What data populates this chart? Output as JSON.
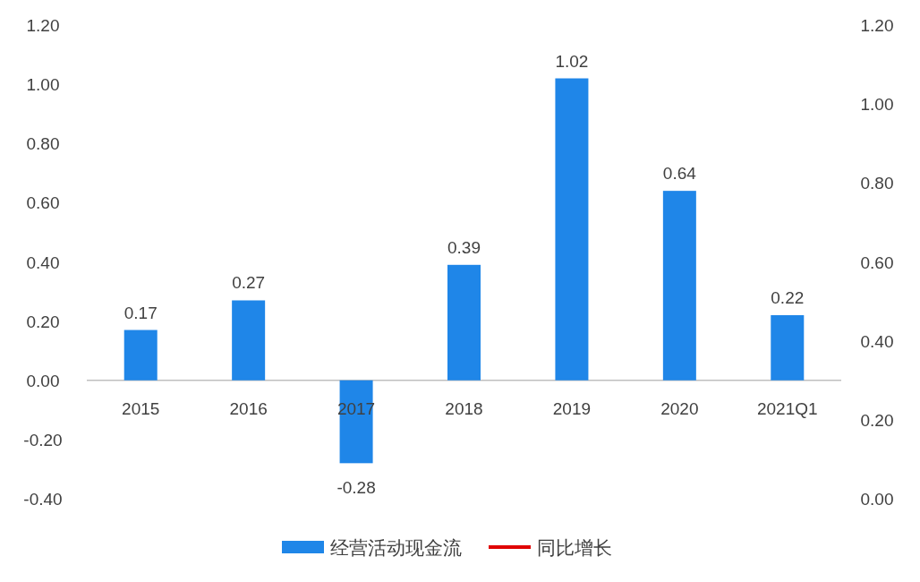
{
  "chart_data": {
    "type": "bar",
    "categories": [
      "2015",
      "2016",
      "2017",
      "2018",
      "2019",
      "2020",
      "2021Q1"
    ],
    "series": [
      {
        "name": "经营活动现金流",
        "color": "#1f86e8",
        "values": [
          0.17,
          0.27,
          -0.28,
          0.39,
          1.02,
          0.64,
          0.22
        ]
      },
      {
        "name": "同比增长",
        "type": "line",
        "axis": "y2",
        "color": "#e00000",
        "values": [
          null,
          null,
          null,
          null,
          null,
          null,
          null
        ]
      }
    ],
    "ylim": [
      -0.4,
      1.2
    ],
    "yticks": [
      {
        "value": -0.4,
        "label": "-0.40"
      },
      {
        "value": -0.2,
        "label": "-0.20"
      },
      {
        "value": 0,
        "label": "0.00"
      },
      {
        "value": 0.2,
        "label": "0.20"
      },
      {
        "value": 0.4,
        "label": "0.40"
      },
      {
        "value": 0.6,
        "label": "0.60"
      },
      {
        "value": 0.8,
        "label": "0.80"
      },
      {
        "value": 1.0,
        "label": "1.00"
      },
      {
        "value": 1.2,
        "label": "1.20"
      }
    ],
    "y2lim": [
      0,
      1.2
    ],
    "y2ticks": [
      {
        "value": 0,
        "label": "0.00"
      },
      {
        "value": 0.2,
        "label": "0.20"
      },
      {
        "value": 0.4,
        "label": "0.40"
      },
      {
        "value": 0.6,
        "label": "0.60"
      },
      {
        "value": 0.8,
        "label": "0.80"
      },
      {
        "value": 1.0,
        "label": "1.00"
      },
      {
        "value": 1.2,
        "label": "1.20"
      }
    ],
    "data_labels": true,
    "grid": false,
    "legend": "bottom"
  }
}
